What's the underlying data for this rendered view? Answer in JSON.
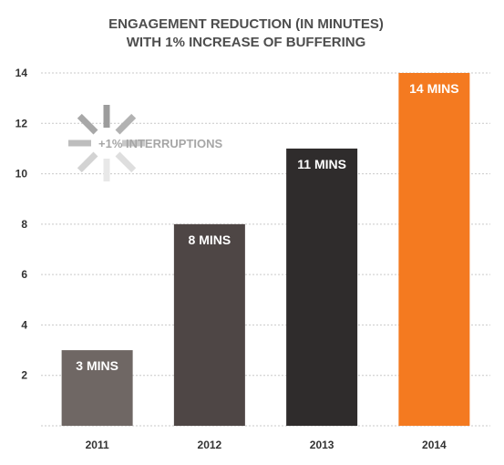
{
  "chart_data": {
    "type": "bar",
    "title": "ENGAGEMENT REDUCTION (IN MINUTES)",
    "subtitle": "WITH 1% INCREASE OF BUFFERING",
    "categories": [
      "2011",
      "2012",
      "2013",
      "2014"
    ],
    "values": [
      3,
      8,
      11,
      14
    ],
    "data_labels": [
      "3 MINS",
      "8 MINS",
      "11 MINS",
      "14 MINS"
    ],
    "bar_colors": [
      "#6f6764",
      "#4e4645",
      "#2f2c2c",
      "#f47a20"
    ],
    "ylim": [
      0,
      14
    ],
    "yticks": [
      2,
      4,
      6,
      8,
      10,
      12,
      14
    ],
    "grid": true,
    "annotation": {
      "text": "+1% INTERRUPTIONS",
      "icon": "loading-spinner-icon"
    }
  }
}
